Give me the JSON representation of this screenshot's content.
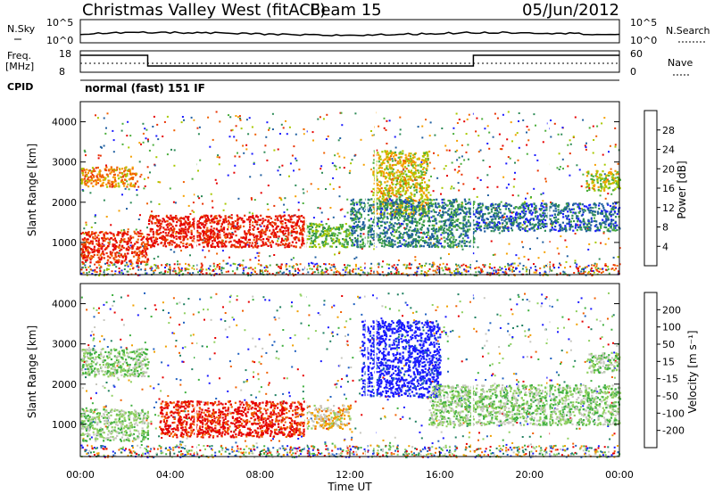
{
  "header": {
    "station": "Christmas Valley West (fitACF)",
    "beam": "Beam 15",
    "date": "05/Jun/2012"
  },
  "summary": {
    "nsky_label": "N.Sky",
    "nsky_ticks": [
      "10^5",
      "10^0"
    ],
    "nsearch_label": "N.Search",
    "freq_label_line1": "Freq.",
    "freq_label_line2": "[MHz]",
    "freq_ticks": [
      "18",
      "8"
    ],
    "nave_label": "Nave",
    "nave_ticks": [
      "60",
      "0"
    ],
    "cpid_label": "CPID",
    "cpid_value": "normal (fast) 151 IF"
  },
  "chart_data": [
    {
      "type": "heatmap",
      "quantity": "power",
      "ylabel": "Slant Range [km]",
      "yticks": [
        "1000",
        "2000",
        "3000",
        "4000"
      ],
      "ylim": [
        200,
        4500
      ],
      "xlim": [
        0,
        24
      ],
      "colorbar": {
        "label": "Power [dB]",
        "ticks": [
          "4",
          "8",
          "12",
          "16",
          "20",
          "24",
          "28"
        ],
        "colors": [
          "#1a1aff",
          "#205fa0",
          "#2e8b57",
          "#4caf3c",
          "#a8c800",
          "#f5a000",
          "#f06000",
          "#e83000",
          "#e60000"
        ]
      },
      "regions": [
        {
          "t0": 0.0,
          "t1": 3.0,
          "r0": 500,
          "r1": 1300,
          "level": 0.85
        },
        {
          "t0": 3.0,
          "t1": 10.0,
          "r0": 900,
          "r1": 1700,
          "level": 0.9
        },
        {
          "t0": 0.0,
          "t1": 2.5,
          "r0": 2400,
          "r1": 2900,
          "level": 0.65
        },
        {
          "t0": 10.0,
          "t1": 12.0,
          "r0": 900,
          "r1": 1500,
          "level": 0.4
        },
        {
          "t0": 13.0,
          "t1": 15.5,
          "r0": 1700,
          "r1": 3300,
          "level": 0.55
        },
        {
          "t0": 12.0,
          "t1": 17.5,
          "r0": 900,
          "r1": 2100,
          "level": 0.25
        },
        {
          "t0": 17.5,
          "t1": 24.0,
          "r0": 1300,
          "r1": 2000,
          "level": 0.2
        },
        {
          "t0": 22.5,
          "t1": 24.0,
          "r0": 2300,
          "r1": 2800,
          "level": 0.5
        }
      ]
    },
    {
      "type": "heatmap",
      "quantity": "velocity",
      "ylabel": "Slant Range [km]",
      "yticks": [
        "1000",
        "2000",
        "3000",
        "4000"
      ],
      "ylim": [
        200,
        4500
      ],
      "xlim": [
        0,
        24
      ],
      "xlabel": "Time UT",
      "xticks": [
        "00:00",
        "04:00",
        "08:00",
        "12:00",
        "16:00",
        "20:00",
        "00:00"
      ],
      "colorbar": {
        "label": "Velocity [m s⁻¹]",
        "ticks": [
          "200",
          "100",
          "50",
          "15",
          "-15",
          "-50",
          "-100",
          "-200"
        ],
        "colors": [
          "#1a1aff",
          "#2060c0",
          "#208060",
          "#40b040",
          "#90d060",
          "#c8c8c0",
          "#f0a000",
          "#f06000",
          "#e60000"
        ]
      },
      "regions": [
        {
          "t0": 0.0,
          "t1": 3.0,
          "r0": 600,
          "r1": 1400,
          "level": 0.5
        },
        {
          "t0": 0.0,
          "t1": 3.0,
          "r0": 2200,
          "r1": 2900,
          "level": 0.5
        },
        {
          "t0": 3.5,
          "t1": 10.0,
          "r0": 700,
          "r1": 1600,
          "level": 0.95
        },
        {
          "t0": 10.0,
          "t1": 12.0,
          "r0": 900,
          "r1": 1500,
          "level": 0.65
        },
        {
          "t0": 12.5,
          "t1": 16.0,
          "r0": 1700,
          "r1": 3600,
          "level": 0.0
        },
        {
          "t0": 15.5,
          "t1": 24.0,
          "r0": 1000,
          "r1": 2000,
          "level": 0.5
        },
        {
          "t0": 22.5,
          "t1": 24.0,
          "r0": 2300,
          "r1": 2800,
          "level": 0.5
        }
      ]
    }
  ]
}
